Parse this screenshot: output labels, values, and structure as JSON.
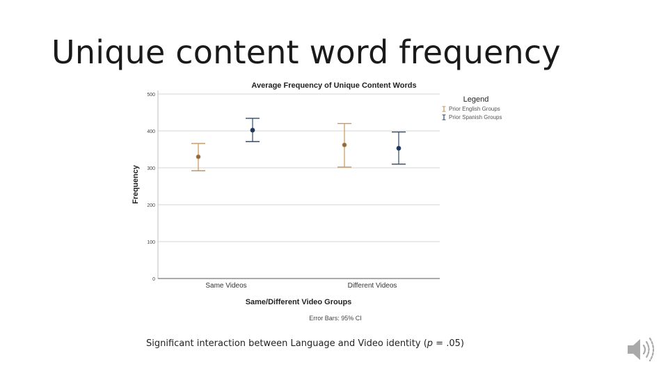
{
  "slide": {
    "title": "Unique content word frequency",
    "caption_before": "Significant interaction between Language and Video identity (",
    "caption_p": "p",
    "caption_after": " = .05)"
  },
  "speaker_icon": "speaker-audio-icon",
  "chart_data": {
    "type": "scatter",
    "subtype": "error-bar",
    "title": "Average Frequency of Unique Content Words",
    "xlabel": "Same/Different Video Groups",
    "ylabel": "Frequency",
    "ylim": [
      0,
      500
    ],
    "yticks": [
      0,
      100,
      200,
      300,
      400,
      500
    ],
    "categories": [
      "Same Videos",
      "Different Videos"
    ],
    "grid": true,
    "legend_title": "Legend",
    "legend_position": "top-right",
    "footnote": "Error Bars: 95% CI",
    "series": [
      {
        "name": "Prior English Groups",
        "color": "#c8955a",
        "mean": [
          330,
          362
        ],
        "ci_low": [
          292,
          302
        ],
        "ci_high": [
          366,
          420
        ]
      },
      {
        "name": "Prior Spanish Groups",
        "color": "#2d4a6e",
        "mean": [
          402,
          353
        ],
        "ci_low": [
          371,
          310
        ],
        "ci_high": [
          434,
          397
        ]
      }
    ]
  }
}
